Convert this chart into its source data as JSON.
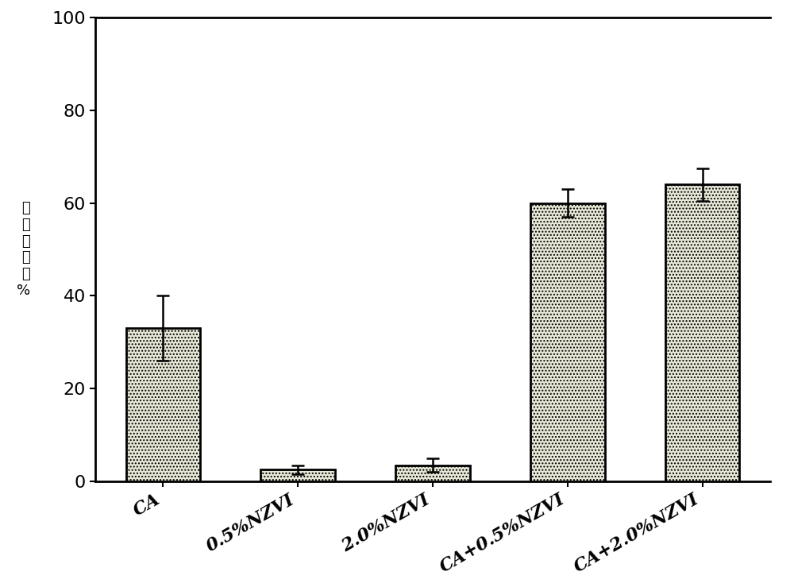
{
  "categories": [
    "CA",
    "0.5%NZVI",
    "2.0%NZVI",
    "CA+0.5%NZVI",
    "CA+2.0%NZVI"
  ],
  "values": [
    33.0,
    2.5,
    3.5,
    60.0,
    64.0
  ],
  "errors": [
    7.0,
    1.0,
    1.5,
    3.0,
    3.5
  ],
  "ylim": [
    0,
    100
  ],
  "yticks": [
    0,
    20,
    40,
    60,
    80,
    100
  ],
  "ylabel_chars": [
    "铅",
    "淤",
    "洗",
    "率",
    "／",
    "%"
  ],
  "bar_color": "#e8e8d8",
  "bar_edgecolor": "#000000",
  "bar_linewidth": 2.0,
  "bar_width": 0.55,
  "error_color": "#000000",
  "error_linewidth": 1.8,
  "error_capsize": 6,
  "background_color": "#ffffff",
  "tick_fontsize": 16,
  "ylabel_fontsize": 13,
  "hatch": "....",
  "spine_top_visible": true,
  "spine_right_visible": false,
  "spine_linewidth": 2.0
}
